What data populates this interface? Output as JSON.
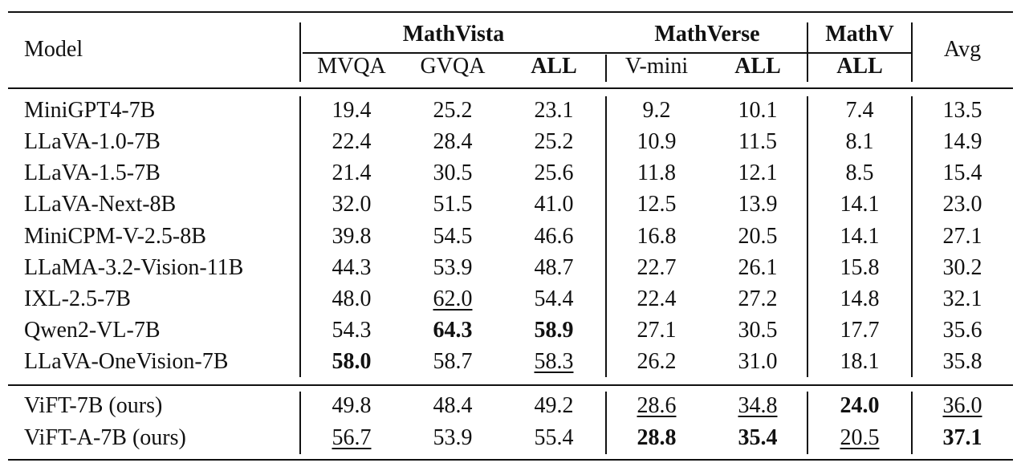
{
  "table": {
    "model_header": "Model",
    "groups": {
      "mathvista": "MathVista",
      "mathverse": "MathVerse",
      "mathv": "MathV",
      "avg": "Avg"
    },
    "subheaders": [
      "MVQA",
      "GVQA",
      "ALL",
      "V-mini",
      "ALL",
      "ALL"
    ],
    "rows": [
      {
        "model": "MiniGPT4-7B",
        "values": [
          "19.4",
          "25.2",
          "23.1",
          "9.2",
          "10.1",
          "7.4",
          "13.5"
        ],
        "bold": [],
        "underline": []
      },
      {
        "model": "LLaVA-1.0-7B",
        "values": [
          "22.4",
          "28.4",
          "25.2",
          "10.9",
          "11.5",
          "8.1",
          "14.9"
        ],
        "bold": [],
        "underline": []
      },
      {
        "model": "LLaVA-1.5-7B",
        "values": [
          "21.4",
          "30.5",
          "25.6",
          "11.8",
          "12.1",
          "8.5",
          "15.4"
        ],
        "bold": [],
        "underline": []
      },
      {
        "model": "LLaVA-Next-8B",
        "values": [
          "32.0",
          "51.5",
          "41.0",
          "12.5",
          "13.9",
          "14.1",
          "23.0"
        ],
        "bold": [],
        "underline": []
      },
      {
        "model": "MiniCPM-V-2.5-8B",
        "values": [
          "39.8",
          "54.5",
          "46.6",
          "16.8",
          "20.5",
          "14.1",
          "27.1"
        ],
        "bold": [],
        "underline": []
      },
      {
        "model": "LLaMA-3.2-Vision-11B",
        "values": [
          "44.3",
          "53.9",
          "48.7",
          "22.7",
          "26.1",
          "15.8",
          "30.2"
        ],
        "bold": [],
        "underline": []
      },
      {
        "model": "IXL-2.5-7B",
        "values": [
          "48.0",
          "62.0",
          "54.4",
          "22.4",
          "27.2",
          "14.8",
          "32.1"
        ],
        "bold": [],
        "underline": [
          1
        ]
      },
      {
        "model": "Qwen2-VL-7B",
        "values": [
          "54.3",
          "64.3",
          "58.9",
          "27.1",
          "30.5",
          "17.7",
          "35.6"
        ],
        "bold": [
          1,
          2
        ],
        "underline": []
      },
      {
        "model": "LLaVA-OneVision-7B",
        "values": [
          "58.0",
          "58.7",
          "58.3",
          "26.2",
          "31.0",
          "18.1",
          "35.8"
        ],
        "bold": [
          0
        ],
        "underline": [
          2
        ]
      },
      {
        "model": "ViFT-7B (ours)",
        "values": [
          "49.8",
          "48.4",
          "49.2",
          "28.6",
          "34.8",
          "24.0",
          "36.0"
        ],
        "bold": [
          5
        ],
        "underline": [
          3,
          4,
          6
        ]
      },
      {
        "model": "ViFT-A-7B (ours)",
        "values": [
          "56.7",
          "53.9",
          "55.4",
          "28.8",
          "35.4",
          "20.5",
          "37.1"
        ],
        "bold": [
          3,
          4,
          6
        ],
        "underline": [
          0,
          5
        ]
      }
    ]
  }
}
